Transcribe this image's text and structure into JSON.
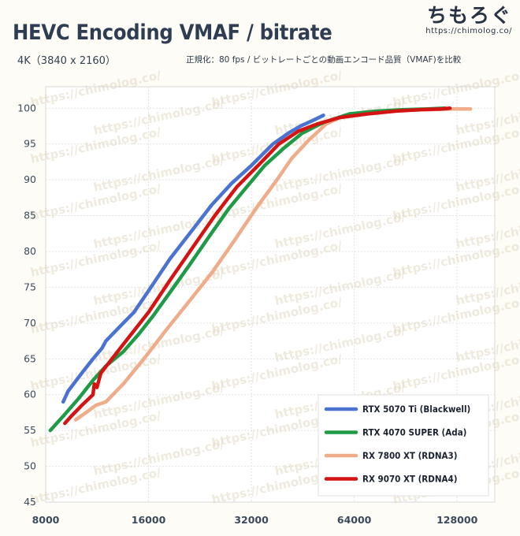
{
  "header": {
    "title": "HEVC Encoding VMAF / bitrate",
    "subtitle": "4K（3840 x 2160）",
    "note": "正規化：80 fps / ビットレートごとの動画エンコード品質（VMAF)を比較",
    "brand_name": "ちもろぐ",
    "brand_url": "https://chimolog.co/",
    "watermark": "https://chimolog.co/"
  },
  "chart_data": {
    "type": "line",
    "title": "HEVC Encoding VMAF / bitrate",
    "subtitle": "4K（3840 x 2160）",
    "xscale": "log2",
    "xlim": [
      8000,
      165000
    ],
    "ylim": [
      45,
      103
    ],
    "xticks": [
      8000,
      16000,
      32000,
      64000,
      128000
    ],
    "xtick_labels": [
      "8000",
      "16000",
      "32000",
      "64000",
      "128000"
    ],
    "yticks": [
      45,
      50,
      55,
      60,
      65,
      70,
      75,
      80,
      85,
      90,
      95,
      100
    ],
    "ytick_labels": [
      "45",
      "50",
      "55",
      "60",
      "65",
      "70",
      "75",
      "80",
      "85",
      "90",
      "95",
      "100"
    ],
    "legend_position": "lower-right",
    "series": [
      {
        "name": "RTX 5070 Ti (Blackwell)",
        "color": "#4a72d0",
        "x": [
          9000,
          9300,
          10200,
          11000,
          11700,
          12000,
          13500,
          14500,
          16000,
          18500,
          21500,
          24500,
          28000,
          32000,
          37000,
          41000,
          44500,
          48500,
          52000
        ],
        "y": [
          59,
          60.5,
          63,
          65,
          66.5,
          67.5,
          70,
          71.5,
          74.5,
          79,
          83,
          86.5,
          89.5,
          92,
          95,
          96.5,
          97.5,
          98.3,
          99
        ]
      },
      {
        "name": "RTX 4070 SUPER (Ada)",
        "color": "#1f9a46",
        "x": [
          8250,
          9000,
          10000,
          11000,
          12000,
          13500,
          15000,
          16500,
          18000,
          21000,
          24000,
          27500,
          31000,
          35000,
          40000,
          45000,
          52000,
          62000,
          75000,
          90000,
          105000,
          118000
        ],
        "y": [
          55,
          57,
          59.5,
          62,
          64,
          66,
          68.5,
          71,
          73.5,
          78,
          82,
          86,
          89,
          92,
          94.5,
          96.5,
          98,
          99.2,
          99.6,
          99.8,
          99.9,
          100
        ]
      },
      {
        "name": "RX 7800 XT (RDNA3)",
        "color": "#eeac88",
        "x": [
          9800,
          10500,
          11200,
          12000,
          13500,
          15500,
          18000,
          21000,
          24500,
          28500,
          33000,
          38000,
          42000,
          47000,
          53000,
          60000,
          70000,
          85000,
          105000,
          125000,
          140000
        ],
        "y": [
          56.5,
          57.5,
          58.5,
          59,
          61.5,
          65,
          69,
          73,
          77,
          81.5,
          86,
          90,
          93,
          95.5,
          97.8,
          99,
          99.5,
          99.7,
          99.8,
          99.9,
          99.9
        ]
      },
      {
        "name": "RX 9070 XT (RDNA4)",
        "color": "#d41313",
        "x": [
          9100,
          9500,
          10200,
          11000,
          11100,
          11300,
          11600,
          12500,
          14000,
          16000,
          18500,
          21500,
          25000,
          29000,
          33500,
          38500,
          44000,
          50000,
          58000,
          70000,
          85000,
          100000,
          115000,
          122000
        ],
        "y": [
          56,
          57,
          58.5,
          60,
          61.5,
          61,
          63,
          65,
          68,
          71.5,
          76,
          80.5,
          85,
          89,
          92,
          95,
          96.8,
          97.8,
          98.7,
          99.2,
          99.6,
          99.8,
          99.9,
          100
        ]
      }
    ]
  }
}
